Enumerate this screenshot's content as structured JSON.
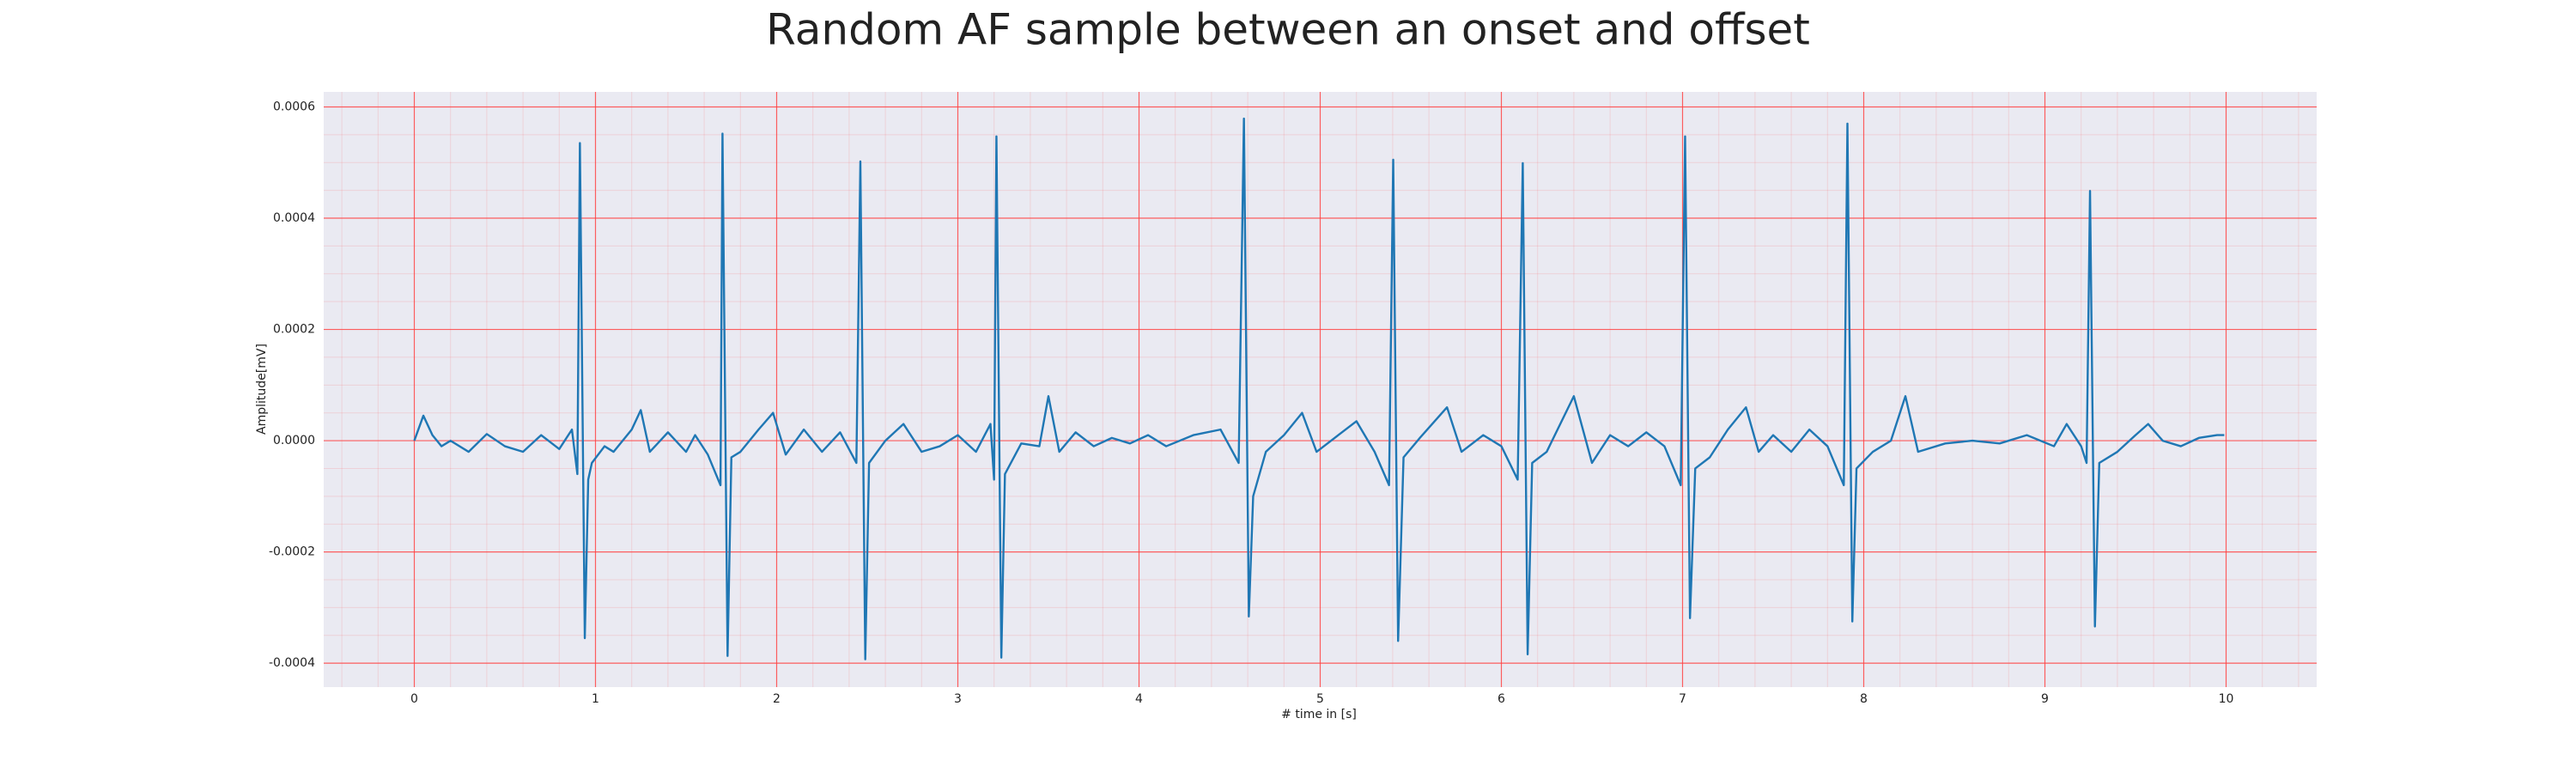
{
  "chart_data": {
    "type": "line",
    "title": "Random AF sample between an onset and offset",
    "xlabel": "# time in [s]",
    "ylabel": "Amplitude[mV]",
    "color": "#1f77b4",
    "grid": true,
    "grid_color": "#ff4040",
    "minor_grid": true,
    "background": "#eaeaf2",
    "xlim": [
      -0.5,
      10.5
    ],
    "xticks": [
      0,
      1,
      2,
      3,
      4,
      5,
      6,
      7,
      8,
      9,
      10
    ],
    "ylim": [
      -0.000443,
      0.000627
    ],
    "yticks": [
      -0.0004,
      -0.0002,
      {
        "value": 0,
        "label": "0.0000"
      },
      0.0002,
      0.0004,
      0.0006
    ],
    "x": [
      0,
      0.05,
      0.1,
      0.15,
      0.2,
      0.3,
      0.4,
      0.5,
      0.6,
      0.7,
      0.8,
      0.87,
      0.9,
      0.914,
      0.941,
      0.96,
      0.98,
      1.05,
      1.1,
      1.2,
      1.25,
      1.3,
      1.4,
      1.5,
      1.55,
      1.62,
      1.69,
      1.701,
      1.729,
      1.75,
      1.8,
      1.9,
      1.98,
      2.05,
      2.15,
      2.25,
      2.35,
      2.44,
      2.462,
      2.489,
      2.51,
      2.6,
      2.7,
      2.8,
      2.9,
      3.0,
      3.1,
      3.18,
      3.2,
      3.213,
      3.24,
      3.26,
      3.35,
      3.45,
      3.5,
      3.56,
      3.65,
      3.75,
      3.85,
      3.95,
      4.05,
      4.15,
      4.3,
      4.45,
      4.55,
      4.579,
      4.606,
      4.63,
      4.7,
      4.8,
      4.9,
      4.98,
      5.1,
      5.2,
      5.3,
      5.38,
      5.403,
      5.43,
      5.46,
      5.55,
      5.7,
      5.78,
      5.9,
      6.0,
      6.09,
      6.118,
      6.145,
      6.17,
      6.25,
      6.4,
      6.5,
      6.6,
      6.7,
      6.8,
      6.9,
      6.99,
      7.014,
      7.041,
      7.07,
      7.15,
      7.25,
      7.35,
      7.42,
      7.5,
      7.6,
      7.7,
      7.8,
      7.89,
      7.91,
      7.937,
      7.96,
      8.05,
      8.15,
      8.23,
      8.3,
      8.45,
      8.6,
      8.75,
      8.9,
      9.05,
      9.12,
      9.2,
      9.23,
      9.249,
      9.276,
      9.3,
      9.4,
      9.5,
      9.57,
      9.65,
      9.75,
      9.85,
      9.95,
      9.99
    ],
    "values": [
      0,
      4.5e-05,
      1e-05,
      -1e-05,
      0,
      -2e-05,
      1.2e-05,
      -1e-05,
      -2e-05,
      1e-05,
      -1.5e-05,
      2e-05,
      -6e-05,
      0.000535,
      -0.000355,
      -7e-05,
      -4e-05,
      -1e-05,
      -2e-05,
      2e-05,
      5.5e-05,
      -2e-05,
      1.5e-05,
      -2e-05,
      1e-05,
      -2.5e-05,
      -8e-05,
      0.000552,
      -0.000387,
      -3e-05,
      -2e-05,
      2e-05,
      5e-05,
      -2.5e-05,
      2e-05,
      -2e-05,
      1.5e-05,
      -4e-05,
      0.000502,
      -0.000393,
      -4e-05,
      0,
      3e-05,
      -2e-05,
      -1e-05,
      1e-05,
      -2e-05,
      3e-05,
      -7e-05,
      0.000547,
      -0.00039,
      -6e-05,
      -5e-06,
      -1e-05,
      8e-05,
      -2e-05,
      1.5e-05,
      -1e-05,
      5e-06,
      -5e-06,
      1e-05,
      -1e-05,
      1e-05,
      2e-05,
      -4e-05,
      0.000579,
      -0.000316,
      -0.0001,
      -2e-05,
      1e-05,
      5e-05,
      -2e-05,
      1e-05,
      3.5e-05,
      -2e-05,
      -8e-05,
      0.000505,
      -0.00036,
      -3e-05,
      5e-06,
      6e-05,
      -2e-05,
      1e-05,
      -1e-05,
      -7e-05,
      0.000499,
      -0.000384,
      -4e-05,
      -2e-05,
      8e-05,
      -4e-05,
      1e-05,
      -1e-05,
      1.5e-05,
      -1e-05,
      -8e-05,
      0.000547,
      -0.000319,
      -5e-05,
      -3e-05,
      2e-05,
      6e-05,
      -2e-05,
      1e-05,
      -2e-05,
      2e-05,
      -1e-05,
      -8e-05,
      0.00057,
      -0.000325,
      -5e-05,
      -2e-05,
      0,
      8e-05,
      -2e-05,
      -5e-06,
      0,
      -5e-06,
      1e-05,
      -1e-05,
      3e-05,
      -1e-05,
      -4e-05,
      0.000449,
      -0.000334,
      -4e-05,
      -2e-05,
      1e-05,
      3e-05,
      0,
      -1e-05,
      5e-06,
      1e-05,
      1e-05
    ]
  }
}
